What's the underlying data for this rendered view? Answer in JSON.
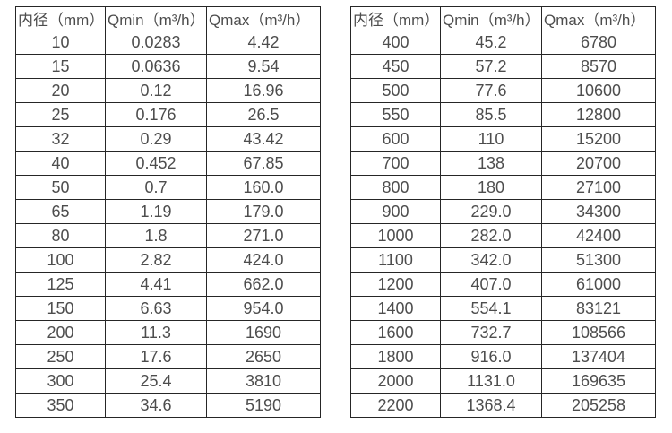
{
  "colors": {
    "border": "#262626",
    "text": "#4d4d4d",
    "background": "#ffffff"
  },
  "tables": [
    {
      "name": "small-diameters",
      "headers": [
        "内径（mm）",
        "Qmin（m³/h）",
        "Qmax（m³/h）"
      ],
      "rows": [
        [
          "10",
          "0.0283",
          "4.42"
        ],
        [
          "15",
          "0.0636",
          "9.54"
        ],
        [
          "20",
          "0.12",
          "16.96"
        ],
        [
          "25",
          "0.176",
          "26.5"
        ],
        [
          "32",
          "0.29",
          "43.42"
        ],
        [
          "40",
          "0.452",
          "67.85"
        ],
        [
          "50",
          "0.7",
          "160.0"
        ],
        [
          "65",
          "1.19",
          "179.0"
        ],
        [
          "80",
          "1.8",
          "271.0"
        ],
        [
          "100",
          "2.82",
          "424.0"
        ],
        [
          "125",
          "4.41",
          "662.0"
        ],
        [
          "150",
          "6.63",
          "954.0"
        ],
        [
          "200",
          "11.3",
          "1690"
        ],
        [
          "250",
          "17.6",
          "2650"
        ],
        [
          "300",
          "25.4",
          "3810"
        ],
        [
          "350",
          "34.6",
          "5190"
        ]
      ]
    },
    {
      "name": "large-diameters",
      "headers": [
        "内径（mm）",
        "Qmin（m³/h）",
        "Qmax（m³/h）"
      ],
      "rows": [
        [
          "400",
          "45.2",
          "6780"
        ],
        [
          "450",
          "57.2",
          "8570"
        ],
        [
          "500",
          "77.6",
          "10600"
        ],
        [
          "550",
          "85.5",
          "12800"
        ],
        [
          "600",
          "110",
          "15200"
        ],
        [
          "700",
          "138",
          "20700"
        ],
        [
          "800",
          "180",
          "27100"
        ],
        [
          "900",
          "229.0",
          "34300"
        ],
        [
          "1000",
          "282.0",
          "42400"
        ],
        [
          "1100",
          "342.0",
          "51300"
        ],
        [
          "1200",
          "407.0",
          "61000"
        ],
        [
          "1400",
          "554.1",
          "83121"
        ],
        [
          "1600",
          "732.7",
          "108566"
        ],
        [
          "1800",
          "916.0",
          "137404"
        ],
        [
          "2000",
          "1131.0",
          "169635"
        ],
        [
          "2200",
          "1368.4",
          "205258"
        ]
      ]
    }
  ]
}
